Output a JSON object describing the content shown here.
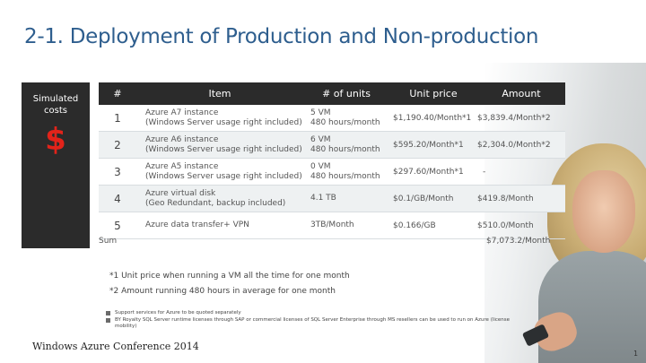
{
  "title": "2-1. Deployment of Production and Non-production",
  "sidebar": {
    "label": "Simulated costs",
    "symbol": "$"
  },
  "table": {
    "headers": [
      "#",
      "Item",
      "# of units",
      "Unit price",
      "Amount"
    ],
    "rows": [
      {
        "num": "1",
        "item1": "Azure A7 instance",
        "item2": "(Windows Server usage right included)",
        "units1": "5 VM",
        "units2": "480 hours/month",
        "price": "$1,190.40/Month*1",
        "amount": "$3,839.4/Month*2"
      },
      {
        "num": "2",
        "item1": "Azure A6 instance",
        "item2": "(Windows Server usage right included)",
        "units1": "6 VM",
        "units2": "480 hours/month",
        "price": "$595.20/Month*1",
        "amount": "$2,304.0/Month*2"
      },
      {
        "num": "3",
        "item1": "Azure A5 instance",
        "item2": "(Windows Server usage right included)",
        "units1": "0 VM",
        "units2": "480 hours/month",
        "price": "$297.60/Month*1",
        "amount": "-"
      },
      {
        "num": "4",
        "item1": "Azure virtual disk",
        "item2": "(Geo Redundant, backup included)",
        "units1": "4.1 TB",
        "units2": "",
        "price": "$0.1/GB/Month",
        "amount": "$419.8/Month"
      },
      {
        "num": "5",
        "item1": "Azure data transfer+ VPN",
        "item2": "",
        "units1": "3TB/Month",
        "units2": "",
        "price": "$0.166/GB",
        "amount": "$510.0/Month"
      }
    ],
    "sum_label": "Sum",
    "sum_value": "$7,073.2/Month"
  },
  "notes": [
    "*1 Unit price when running a VM all the time for one month",
    "*2  Amount running 480 hours in average for one month"
  ],
  "bullets": [
    "Support services for Azure to be quoted separately",
    "BY Royalty SQL Server runtime licenses through SAP or commercial licenses of SQL Server Enterprise through MS resellers can be used to run on Azure (license mobility)"
  ],
  "footer": "Windows Azure Conference 2014",
  "page_number": "1"
}
